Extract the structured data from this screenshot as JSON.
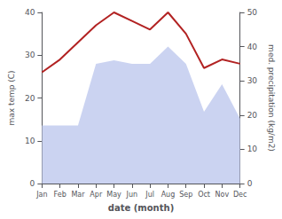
{
  "chart_data": {
    "type": "line",
    "xlabel": "date (month)",
    "ylabel": "max temp (C)",
    "y2label": "med. precipitation (kg/m2)",
    "categories": [
      "Jan",
      "Feb",
      "Mar",
      "Apr",
      "May",
      "Jun",
      "Jul",
      "Aug",
      "Sep",
      "Oct",
      "Nov",
      "Dec"
    ],
    "series": [
      {
        "type": "area",
        "axis": "y2",
        "color": "#c5cef0",
        "values": [
          17,
          17,
          17,
          35,
          36,
          35,
          35,
          40,
          35,
          21,
          29,
          19
        ]
      },
      {
        "type": "line",
        "axis": "y",
        "color": "#b22222",
        "values": [
          26,
          29,
          33,
          37,
          40,
          38,
          36,
          40,
          35,
          27,
          29,
          28
        ]
      }
    ],
    "ylim": [
      0,
      40
    ],
    "yticks": [
      0,
      10,
      20,
      30,
      40
    ],
    "y2lim": [
      0,
      50
    ],
    "y2ticks": [
      0,
      10,
      20,
      30,
      40,
      50
    ],
    "grid": false
  }
}
